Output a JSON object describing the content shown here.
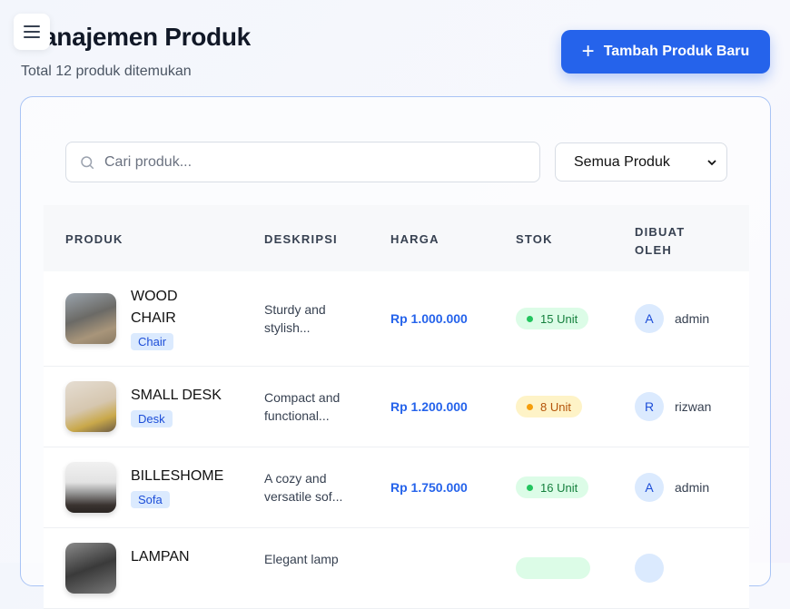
{
  "header": {
    "title": "Manajemen Produk",
    "subtitle": "Total 12 produk ditemukan",
    "add_button": "Tambah Produk Baru",
    "menu_icon": "hamburger-icon"
  },
  "filters": {
    "search_placeholder": "Cari produk...",
    "search_value": "",
    "category_select": "Semua Produk"
  },
  "table": {
    "headers": [
      "PRODUK",
      "DESKRIPSI",
      "HARGA",
      "STOK",
      "DIBUAT OLEH"
    ],
    "rows": [
      {
        "name": "WOOD CHAIR",
        "category": "Chair",
        "description": "Sturdy and stylish...",
        "price": "Rp 1.000.000",
        "stock": "15 Unit",
        "stock_status": "green",
        "avatar": "A",
        "user": "admin"
      },
      {
        "name": "SMALL DESK",
        "category": "Desk",
        "description": "Compact and functional...",
        "price": "Rp 1.200.000",
        "stock": "8 Unit",
        "stock_status": "amber",
        "avatar": "R",
        "user": "rizwan"
      },
      {
        "name": "BILLESHOME",
        "category": "Sofa",
        "description": "A cozy and versatile sof...",
        "price": "Rp 1.750.000",
        "stock": "16 Unit",
        "stock_status": "green",
        "avatar": "A",
        "user": "admin"
      },
      {
        "name": "LAMPAN",
        "description": "Elegant lamp",
        "stock_status": "green"
      }
    ]
  },
  "colors": {
    "accent": "#2563eb",
    "stock_ok": "#22c55e",
    "stock_low": "#f59e0b"
  }
}
